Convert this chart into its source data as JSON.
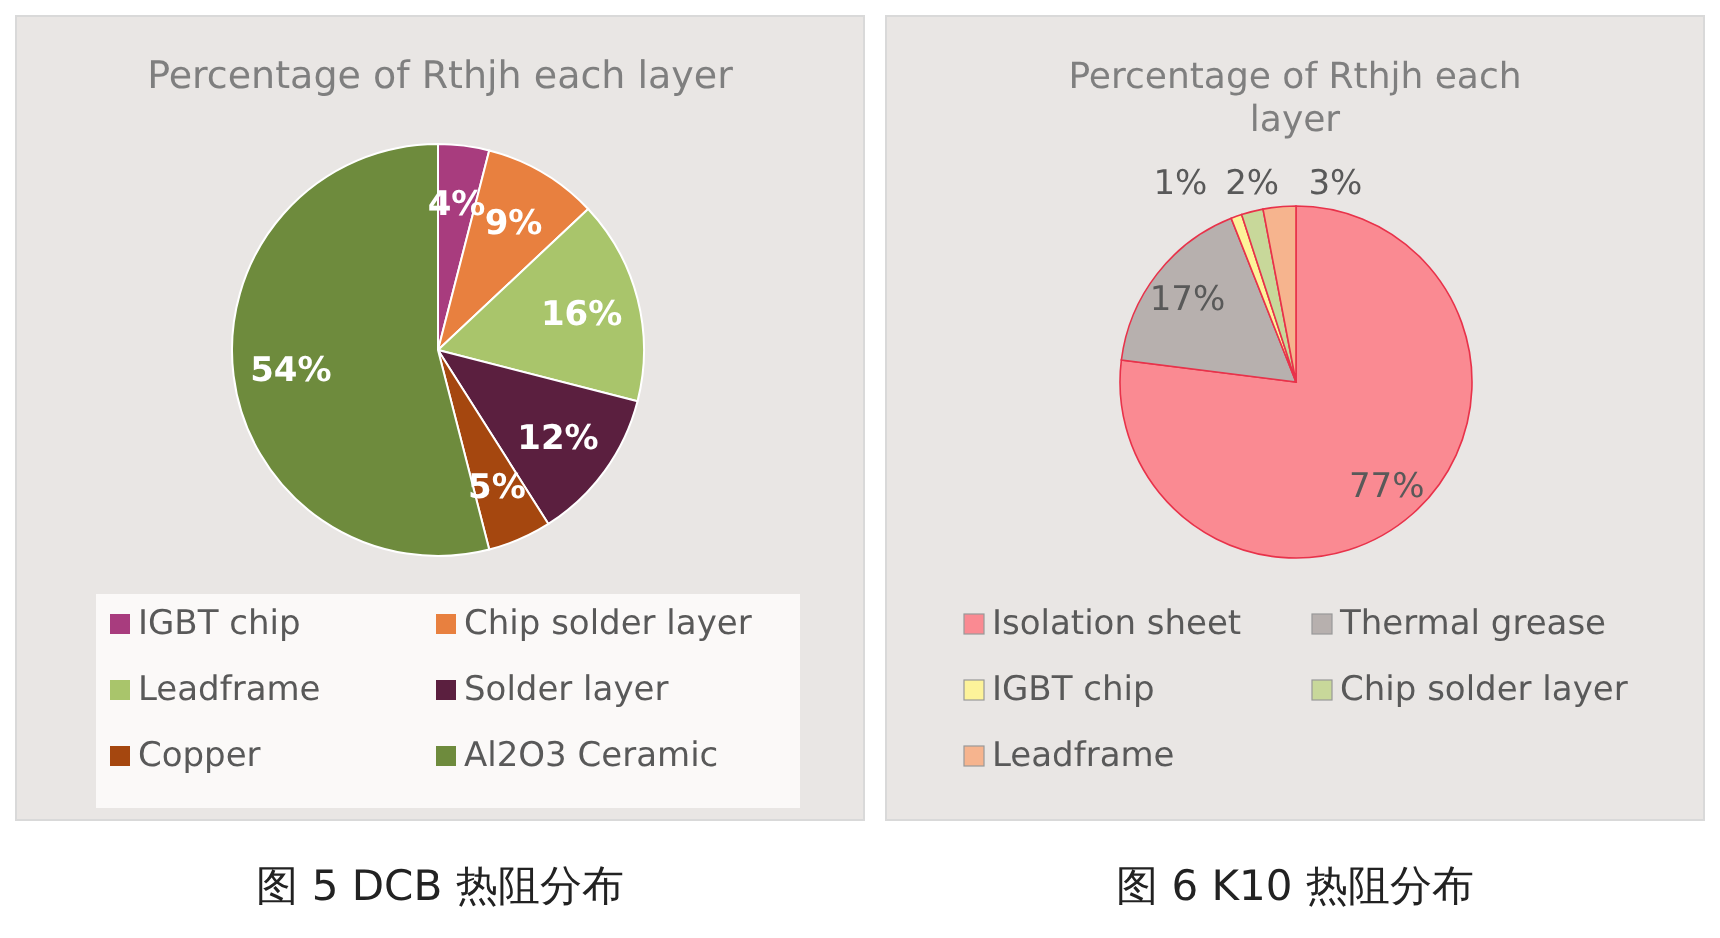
{
  "chart_data": [
    {
      "type": "pie",
      "title": "Percentage of Rthjh  each layer",
      "categories": [
        "IGBT chip",
        "Chip solder layer",
        "Leadframe",
        "Solder layer",
        "Copper",
        "Al2O3 Ceramic"
      ],
      "values": [
        4,
        9,
        16,
        12,
        5,
        54
      ],
      "colors": [
        "#a83c7e",
        "#e8803f",
        "#a9c56b",
        "#5b1f3f",
        "#a5470f",
        "#6e8b3d"
      ],
      "value_labels": [
        "4%",
        "9%",
        "16%",
        "12%",
        "5%",
        "54%"
      ],
      "legend": "bottom",
      "annotations": [
        "图 5 DCB 热阻分布"
      ]
    },
    {
      "type": "pie",
      "title": "Percentage of Rthjh each layer",
      "categories": [
        "Isolation sheet",
        "Thermal grease",
        "IGBT chip",
        "Chip solder layer",
        "Leadframe"
      ],
      "values": [
        77,
        17,
        1,
        2,
        3
      ],
      "colors": [
        "#fa8a92",
        "#b7b0ae",
        "#fdf39a",
        "#c8d89a",
        "#f6b48e"
      ],
      "value_labels": [
        "77%",
        "17%",
        "1%",
        "2%",
        "3%"
      ],
      "legend": "bottom",
      "annotations": [
        "图 6 K10 热阻分布"
      ]
    }
  ]
}
